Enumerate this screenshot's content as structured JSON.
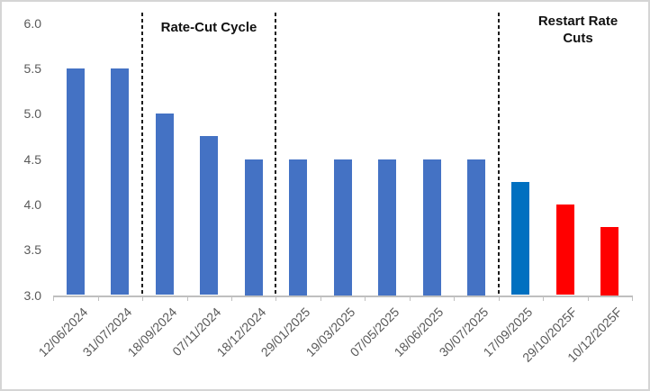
{
  "chart_data": {
    "type": "bar",
    "title": "",
    "xlabel": "",
    "ylabel": "",
    "categories": [
      "12/06/2024",
      "31/07/2024",
      "18/09/2024",
      "07/11/2024",
      "18/12/2024",
      "29/01/2025",
      "19/03/2025",
      "07/05/2025",
      "18/06/2025",
      "30/07/2025",
      "17/09/2025",
      "29/10/2025F",
      "10/12/2025F"
    ],
    "values": [
      5.5,
      5.5,
      5.0,
      4.75,
      4.5,
      4.5,
      4.5,
      4.5,
      4.5,
      4.5,
      4.25,
      4.0,
      3.75
    ],
    "bar_colors": [
      "#4472C4",
      "#4472C4",
      "#4472C4",
      "#4472C4",
      "#4472C4",
      "#4472C4",
      "#4472C4",
      "#4472C4",
      "#4472C4",
      "#4472C4",
      "#0070C0",
      "#FF0000",
      "#FF0000"
    ],
    "ylim": [
      3.0,
      6.0
    ],
    "ytick_labels": [
      "6.0",
      "5.5",
      "5.0",
      "4.5",
      "4.0",
      "3.5",
      "3.0"
    ],
    "ytick_values": [
      6.0,
      5.5,
      5.0,
      4.5,
      4.0,
      3.5,
      3.0
    ],
    "grid": false,
    "legend": null,
    "separators_after_category_index": [
      2,
      5,
      10
    ],
    "annotations": [
      {
        "name": "rate-cut-cycle-label",
        "lines": [
          "Rate-Cut Cycle"
        ]
      },
      {
        "name": "restart-rate-cuts-label",
        "lines": [
          "Restart Rate",
          "Cuts"
        ]
      }
    ],
    "colors": {
      "bar_default": "#4472C4",
      "bar_highlight": "#0070C0",
      "bar_forecast": "#FF0000",
      "axis_line": "#BFBFBF",
      "tick_label_text": "#595959",
      "annotation_text": "#111111",
      "separator_line": "#1B1B1B"
    }
  }
}
